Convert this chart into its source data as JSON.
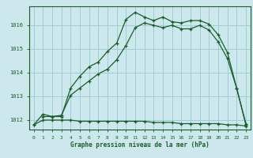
{
  "title": "Graphe pression niveau de la mer (hPa)",
  "bg_color": "#cce8ec",
  "grid_color": "#9ecdd4",
  "line_color": "#1a5c28",
  "xlim": [
    -0.5,
    23.5
  ],
  "ylim": [
    1011.6,
    1016.8
  ],
  "yticks": [
    1012,
    1013,
    1014,
    1015,
    1016
  ],
  "xticks": [
    0,
    1,
    2,
    3,
    4,
    5,
    6,
    7,
    8,
    9,
    10,
    11,
    12,
    13,
    14,
    15,
    16,
    17,
    18,
    19,
    20,
    21,
    22,
    23
  ],
  "line1_x": [
    0,
    1,
    2,
    3,
    4,
    5,
    6,
    7,
    8,
    9,
    10,
    11,
    12,
    13,
    14,
    15,
    16,
    17,
    18,
    19,
    20,
    21,
    22,
    23
  ],
  "line1_y": [
    1011.8,
    1012.25,
    1012.15,
    1012.15,
    1013.35,
    1013.85,
    1014.25,
    1014.45,
    1014.9,
    1015.25,
    1016.25,
    1016.55,
    1016.35,
    1016.2,
    1016.35,
    1016.15,
    1016.1,
    1016.2,
    1016.2,
    1016.05,
    1015.6,
    1014.85,
    1013.35,
    1011.8
  ],
  "line2_x": [
    1,
    2,
    3,
    4,
    5,
    6,
    7,
    8,
    9,
    10,
    11,
    12,
    13,
    14,
    15,
    16,
    17,
    18,
    19,
    20,
    21,
    22,
    23
  ],
  "line2_y": [
    1012.15,
    1012.15,
    1012.2,
    1013.05,
    1013.35,
    1013.65,
    1013.95,
    1014.15,
    1014.55,
    1015.15,
    1015.9,
    1016.1,
    1016.0,
    1015.9,
    1016.0,
    1015.85,
    1015.85,
    1016.0,
    1015.8,
    1015.3,
    1014.6,
    1013.35,
    1011.85
  ],
  "line3_x": [
    0,
    1,
    2,
    3,
    4,
    5,
    6,
    7,
    8,
    9,
    10,
    11,
    12,
    13,
    14,
    15,
    16,
    17,
    18,
    19,
    20,
    21,
    22,
    23
  ],
  "line3_y": [
    1011.8,
    1012.0,
    1012.0,
    1012.0,
    1012.0,
    1011.95,
    1011.95,
    1011.95,
    1011.95,
    1011.95,
    1011.95,
    1011.95,
    1011.95,
    1011.9,
    1011.9,
    1011.9,
    1011.85,
    1011.85,
    1011.85,
    1011.85,
    1011.85,
    1011.8,
    1011.8,
    1011.75
  ]
}
